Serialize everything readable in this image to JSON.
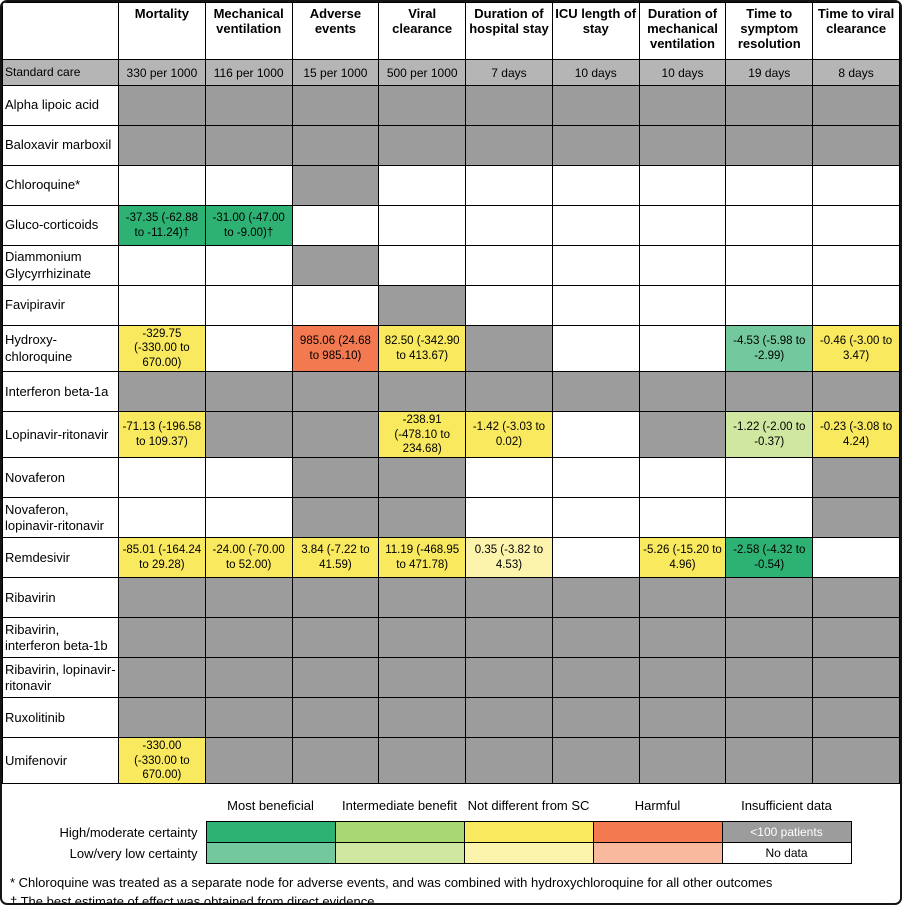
{
  "palette": {
    "mb_h": "#2eb274",
    "mb_l": "#74c89d",
    "ib_h": "#a9d771",
    "ib_l": "#cfe7a0",
    "nd_h": "#f8e95f",
    "nd_l": "#fcf4ad",
    "h_h": "#f37950",
    "h_l": "#f8b99e",
    "id": "#9c9c9c",
    "no": "#ffffff",
    "sc_bg": "#b5b5b5"
  },
  "chart_data": {
    "type": "heatmap",
    "columns": [
      "Mortality",
      "Mechanical ventilation",
      "Adverse events",
      "Viral clearance",
      "Duration of hospital stay",
      "ICU length of stay",
      "Duration of mechanical ventilation",
      "Time to symptom resolution",
      "Time to viral clearance"
    ],
    "standard_care": {
      "label": "Standard care",
      "values": [
        "330 per 1000",
        "116 per 1000",
        "15 per 1000",
        "500 per 1000",
        "7 days",
        "10 days",
        "10 days",
        "19 days",
        "8 days"
      ]
    },
    "rows": [
      {
        "label": "Alpha lipoic acid",
        "cats": [
          "id",
          "id",
          "id",
          "id",
          "id",
          "id",
          "id",
          "id",
          "id"
        ],
        "vals": [
          "",
          "",
          "",
          "",
          "",
          "",
          "",
          "",
          ""
        ]
      },
      {
        "label": "Baloxavir marboxil",
        "cats": [
          "id",
          "id",
          "id",
          "id",
          "id",
          "id",
          "id",
          "id",
          "id"
        ],
        "vals": [
          "",
          "",
          "",
          "",
          "",
          "",
          "",
          "",
          ""
        ]
      },
      {
        "label": "Chloroquine*",
        "cats": [
          "no",
          "no",
          "id",
          "no",
          "no",
          "no",
          "no",
          "no",
          "no"
        ],
        "vals": [
          "",
          "",
          "",
          "",
          "",
          "",
          "",
          "",
          ""
        ]
      },
      {
        "label": "Gluco-corticoids",
        "cats": [
          "mb_h",
          "mb_h",
          "no",
          "no",
          "no",
          "no",
          "no",
          "no",
          "no"
        ],
        "vals": [
          "-37.35 (-62.88 to -11.24)†",
          "-31.00 (-47.00 to -9.00)†",
          "",
          "",
          "",
          "",
          "",
          "",
          ""
        ]
      },
      {
        "label": "Diammonium Glycyrrhizinate",
        "cats": [
          "no",
          "no",
          "id",
          "no",
          "no",
          "no",
          "no",
          "no",
          "no"
        ],
        "vals": [
          "",
          "",
          "",
          "",
          "",
          "",
          "",
          "",
          ""
        ]
      },
      {
        "label": "Favipiravir",
        "cats": [
          "no",
          "no",
          "no",
          "id",
          "no",
          "no",
          "no",
          "no",
          "no"
        ],
        "vals": [
          "",
          "",
          "",
          "",
          "",
          "",
          "",
          "",
          ""
        ]
      },
      {
        "label": "Hydroxy-chloroquine",
        "cats": [
          "nd_h",
          "no",
          "h_h",
          "nd_h",
          "id",
          "no",
          "no",
          "mb_l",
          "nd_h"
        ],
        "vals": [
          "-329.75 (-330.00 to 670.00)",
          "",
          "985.06 (24.68 to 985.10)",
          "82.50 (-342.90 to 413.67)",
          "",
          "",
          "",
          "-4.53 (-5.98 to -2.99)",
          "-0.46 (-3.00 to 3.47)"
        ]
      },
      {
        "label": "Interferon beta-1a",
        "cats": [
          "id",
          "id",
          "id",
          "id",
          "id",
          "id",
          "id",
          "id",
          "id"
        ],
        "vals": [
          "",
          "",
          "",
          "",
          "",
          "",
          "",
          "",
          ""
        ]
      },
      {
        "label": "Lopinavir-ritonavir",
        "cats": [
          "nd_h",
          "id",
          "id",
          "nd_h",
          "nd_h",
          "no",
          "id",
          "ib_l",
          "nd_h"
        ],
        "vals": [
          "-71.13 (-196.58 to 109.37)",
          "",
          "",
          "-238.91 (-478.10 to 234.68)",
          "-1.42 (-3.03 to 0.02)",
          "",
          "",
          "-1.22 (-2.00 to -0.37)",
          "-0.23 (-3.08 to 4.24)"
        ]
      },
      {
        "label": "Novaferon",
        "cats": [
          "no",
          "no",
          "id",
          "id",
          "no",
          "no",
          "no",
          "no",
          "id"
        ],
        "vals": [
          "",
          "",
          "",
          "",
          "",
          "",
          "",
          "",
          ""
        ]
      },
      {
        "label": "Novaferon, lopinavir-ritonavir",
        "cats": [
          "no",
          "no",
          "id",
          "id",
          "no",
          "no",
          "no",
          "no",
          "id"
        ],
        "vals": [
          "",
          "",
          "",
          "",
          "",
          "",
          "",
          "",
          ""
        ]
      },
      {
        "label": "Remdesivir",
        "cats": [
          "nd_h",
          "nd_h",
          "nd_h",
          "nd_h",
          "nd_l",
          "no",
          "nd_h",
          "mb_h",
          "no"
        ],
        "vals": [
          "-85.01 (-164.24 to 29.28)",
          "-24.00 (-70.00 to 52.00)",
          "3.84 (-7.22 to 41.59)",
          "11.19 (-468.95 to 471.78)",
          "0.35 (-3.82 to 4.53)",
          "",
          "-5.26 (-15.20 to 4.96)",
          "-2.58 (-4.32 to -0.54)",
          ""
        ]
      },
      {
        "label": "Ribavirin",
        "cats": [
          "id",
          "id",
          "id",
          "id",
          "id",
          "id",
          "id",
          "id",
          "id"
        ],
        "vals": [
          "",
          "",
          "",
          "",
          "",
          "",
          "",
          "",
          ""
        ]
      },
      {
        "label": "Ribavirin, interferon beta-1b",
        "cats": [
          "id",
          "id",
          "id",
          "id",
          "id",
          "id",
          "id",
          "id",
          "id"
        ],
        "vals": [
          "",
          "",
          "",
          "",
          "",
          "",
          "",
          "",
          ""
        ]
      },
      {
        "label": "Ribavirin, lopinavir-ritonavir",
        "cats": [
          "id",
          "id",
          "id",
          "id",
          "id",
          "id",
          "id",
          "id",
          "id"
        ],
        "vals": [
          "",
          "",
          "",
          "",
          "",
          "",
          "",
          "",
          ""
        ]
      },
      {
        "label": "Ruxolitinib",
        "cats": [
          "id",
          "id",
          "id",
          "id",
          "id",
          "id",
          "id",
          "id",
          "id"
        ],
        "vals": [
          "",
          "",
          "",
          "",
          "",
          "",
          "",
          "",
          ""
        ]
      },
      {
        "label": "Umifenovir",
        "cats": [
          "nd_h",
          "id",
          "id",
          "id",
          "id",
          "id",
          "id",
          "id",
          "id"
        ],
        "vals": [
          "-330.00 (-330.00 to 670.00)",
          "",
          "",
          "",
          "",
          "",
          "",
          "",
          ""
        ]
      }
    ]
  },
  "legend": {
    "column_labels": [
      "Most beneficial",
      "Intermediate benefit",
      "Not different from SC",
      "Harmful",
      "Insufficient data"
    ],
    "row_labels": [
      "High/moderate certainty",
      "Low/very low certainty"
    ],
    "swatch_rows": [
      {
        "cats": [
          "mb_h",
          "ib_h",
          "nd_h",
          "h_h",
          "id"
        ],
        "texts": [
          "",
          "",
          "",
          "",
          "<100 patients"
        ]
      },
      {
        "cats": [
          "mb_l",
          "ib_l",
          "nd_l",
          "h_l",
          "no"
        ],
        "texts": [
          "",
          "",
          "",
          "",
          "No data"
        ]
      }
    ]
  },
  "footnotes": [
    "* Chloroquine was treated as a separate node for adverse events, and was combined with hydroxychloroquine for all other outcomes",
    "† The best estimate of effect was obtained from direct evidence"
  ]
}
